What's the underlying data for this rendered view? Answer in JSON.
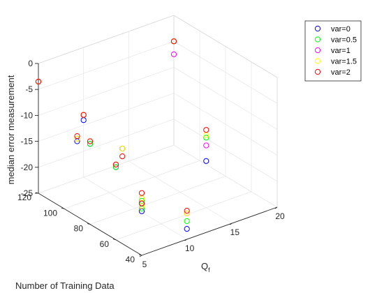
{
  "chart_data": {
    "type": "scatter",
    "title": "",
    "xlabel": "Q",
    "xlabel_subscript": "f",
    "ylabel": "Number of Training Data",
    "zlabel": "median error measurement",
    "xlim": [
      5,
      20
    ],
    "ylim": [
      40,
      120
    ],
    "zlim": [
      -25,
      0
    ],
    "xticks": [
      "5",
      "10",
      "15",
      "20"
    ],
    "yticks": [
      "40",
      "60",
      "80",
      "100",
      "120"
    ],
    "zticks": [
      "0",
      "-5",
      "-10",
      "-15",
      "-20",
      "-25"
    ],
    "grid": true,
    "marker": "circle-open",
    "legend_position": "top-right",
    "series": [
      {
        "name": "var=0",
        "color": "#0000ff",
        "points": [
          [
            5,
            120,
            -3.5
          ],
          [
            5,
            90,
            -10.5
          ],
          [
            5,
            80,
            -9.5
          ],
          [
            5,
            60,
            -11
          ],
          [
            5,
            40,
            -16.5
          ],
          [
            5,
            40,
            -15
          ],
          [
            10,
            120,
            -14
          ],
          [
            10,
            90,
            -15
          ],
          [
            10,
            40,
            -23
          ],
          [
            15,
            60,
            -16
          ],
          [
            20,
            120,
            -5
          ]
        ]
      },
      {
        "name": "var=0.5",
        "color": "#00ff00",
        "points": [
          [
            5,
            120,
            -3.5
          ],
          [
            5,
            90,
            -10
          ],
          [
            5,
            80,
            -9.5
          ],
          [
            5,
            60,
            -11
          ],
          [
            5,
            40,
            -16
          ],
          [
            5,
            40,
            -14.5
          ],
          [
            10,
            120,
            -13
          ],
          [
            10,
            90,
            -15
          ],
          [
            10,
            40,
            -21.5
          ],
          [
            15,
            60,
            -11.5
          ],
          [
            20,
            120,
            -5
          ]
        ]
      },
      {
        "name": "var=1",
        "color": "#ff00ff",
        "points": [
          [
            5,
            120,
            -3.5
          ],
          [
            5,
            90,
            -10
          ],
          [
            5,
            80,
            -9
          ],
          [
            5,
            60,
            -10.5
          ],
          [
            5,
            40,
            -15.5
          ],
          [
            5,
            40,
            -14
          ],
          [
            10,
            120,
            -13
          ],
          [
            10,
            90,
            -15
          ],
          [
            10,
            40,
            -20
          ],
          [
            15,
            60,
            -13
          ],
          [
            20,
            120,
            -7.5
          ]
        ]
      },
      {
        "name": "var=1.5",
        "color": "#ffff00",
        "points": [
          [
            5,
            120,
            -3.5
          ],
          [
            5,
            90,
            -10
          ],
          [
            5,
            80,
            -9
          ],
          [
            5,
            60,
            -10.5
          ],
          [
            5,
            40,
            -15.5
          ],
          [
            5,
            40,
            -14
          ],
          [
            10,
            120,
            -13
          ],
          [
            10,
            90,
            -15
          ],
          [
            10,
            40,
            -20
          ],
          [
            15,
            60,
            -11
          ],
          [
            20,
            120,
            -5
          ]
        ]
      },
      {
        "name": "var=2",
        "color": "#ff0000",
        "points": [
          [
            5,
            120,
            -3.5
          ],
          [
            5,
            90,
            -9.5
          ],
          [
            5,
            80,
            -9
          ],
          [
            5,
            60,
            -10.5
          ],
          [
            5,
            40,
            -15
          ],
          [
            5,
            40,
            -13
          ],
          [
            10,
            120,
            -13
          ],
          [
            10,
            90,
            -16.5
          ],
          [
            10,
            40,
            -19.5
          ],
          [
            15,
            60,
            -10
          ],
          [
            20,
            120,
            -5
          ]
        ]
      }
    ]
  }
}
